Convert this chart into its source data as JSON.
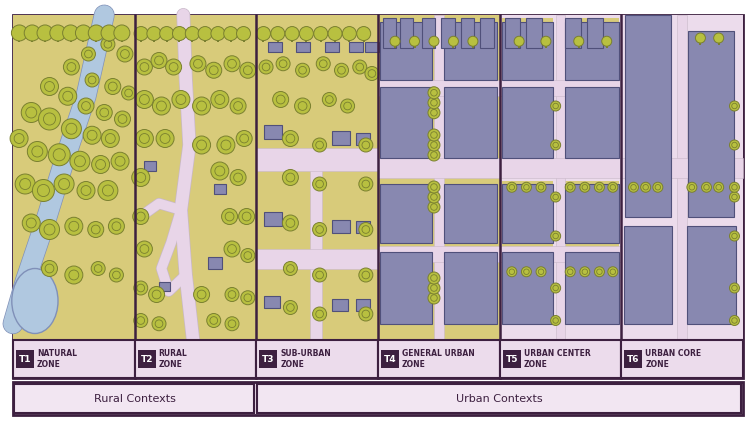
{
  "bg_outer": "#ffffff",
  "panel_bg": "#e8d5e8",
  "sky_color": "#ecdcec",
  "land_color": "#d8cb7a",
  "road_color": "#e8d5e8",
  "water_color": "#b0c8e0",
  "water_edge": "#8090b8",
  "hill_color": "#c8c060",
  "tree_fill": "#b8c040",
  "tree_edge": "#7a8030",
  "tree_inner": "#8a9030",
  "bld_fill": "#8888b0",
  "bld_edge": "#5050808",
  "border_color": "#3d2040",
  "label_bg": "#ecdcec",
  "badge_bg": "#3d2040",
  "badge_text": "#ffffff",
  "zone_text": "#3d2040",
  "ctx_bg": "#ecdcec",
  "zones": [
    {
      "id": "T1",
      "label": "NATURAL\nZONE"
    },
    {
      "id": "T2",
      "label": "RURAL\nZONE"
    },
    {
      "id": "T3",
      "label": "SUB-URBAN\nZONE"
    },
    {
      "id": "T4",
      "label": "GENERAL URBAN\nZONE"
    },
    {
      "id": "T5",
      "label": "URBAN CENTER\nZONE"
    },
    {
      "id": "T6",
      "label": "URBAN CORE\nZONE"
    }
  ],
  "contexts": [
    {
      "label": "Rural Contexts",
      "zones": 2
    },
    {
      "label": "Urban Contexts",
      "zones": 4
    }
  ]
}
